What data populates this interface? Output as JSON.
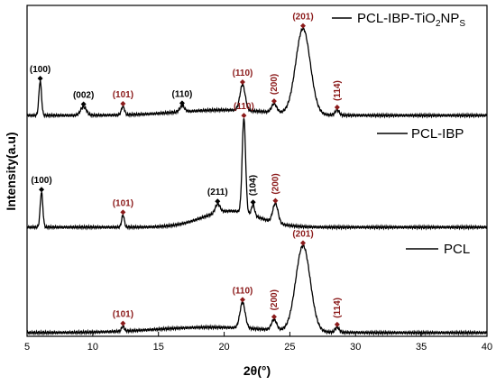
{
  "chart_data": {
    "type": "line",
    "xlabel": "2θ(°)",
    "ylabel": "Intensity(a.u)",
    "xlim": [
      5,
      40
    ],
    "xticks": [
      5,
      10,
      15,
      20,
      25,
      30,
      35,
      40
    ],
    "y_tick_labels_shown": false,
    "grid": false,
    "colors": {
      "line": "#000000",
      "black_label": "#000000",
      "red_label": "#8B1A1A"
    },
    "series": [
      {
        "name": "PCL-IBP-TiO2NPs",
        "legend_parts": [
          "PCL-IBP-TiO",
          "2",
          "NP",
          "S"
        ],
        "peaks": [
          {
            "x": 6.0,
            "h": 40,
            "w": 0.1,
            "label": "(100)",
            "color": "black"
          },
          {
            "x": 9.3,
            "h": 10,
            "w": 0.22,
            "label": "(002)",
            "color": "black"
          },
          {
            "x": 12.3,
            "h": 10,
            "w": 0.12,
            "label": "(101)",
            "color": "red"
          },
          {
            "x": 16.8,
            "h": 7,
            "w": 0.18,
            "label": "(110)",
            "color": "black"
          },
          {
            "x": 21.4,
            "h": 30,
            "w": 0.2,
            "label": "(110)",
            "color": "red",
            "rotate": false
          },
          {
            "x": 23.8,
            "h": 10,
            "w": 0.2,
            "label": "(200)",
            "color": "red",
            "rotate": true
          },
          {
            "x": 26.0,
            "h": 100,
            "w": 0.55,
            "label": "(201)",
            "color": "red"
          },
          {
            "x": 28.6,
            "h": 6,
            "w": 0.15,
            "label": "(114)",
            "color": "red",
            "rotate": true
          }
        ]
      },
      {
        "name": "PCL-IBP",
        "peaks": [
          {
            "x": 6.1,
            "h": 40,
            "w": 0.1,
            "label": "(100)",
            "color": "black"
          },
          {
            "x": 12.3,
            "h": 14,
            "w": 0.1,
            "label": "(101)",
            "color": "red"
          },
          {
            "x": 19.5,
            "h": 10,
            "w": 0.18,
            "label": "(211)",
            "color": "black"
          },
          {
            "x": 21.5,
            "h": 108,
            "w": 0.13,
            "label": "(110)",
            "color": "red"
          },
          {
            "x": 22.2,
            "h": 12,
            "w": 0.12,
            "label": "(104)",
            "color": "black",
            "rotate": true
          },
          {
            "x": 23.9,
            "h": 22,
            "w": 0.2,
            "label": "(200)",
            "color": "red",
            "rotate": true
          }
        ]
      },
      {
        "name": "PCL",
        "peaks": [
          {
            "x": 12.3,
            "h": 6,
            "w": 0.1,
            "label": "(101)",
            "color": "red"
          },
          {
            "x": 21.4,
            "h": 30,
            "w": 0.2,
            "label": "(110)",
            "color": "red"
          },
          {
            "x": 23.8,
            "h": 12,
            "w": 0.2,
            "label": "(200)",
            "color": "red",
            "rotate": true
          },
          {
            "x": 26.0,
            "h": 100,
            "w": 0.55,
            "label": "(201)",
            "color": "red"
          },
          {
            "x": 28.6,
            "h": 6,
            "w": 0.15,
            "label": "(114)",
            "color": "red",
            "rotate": true
          }
        ]
      }
    ]
  }
}
